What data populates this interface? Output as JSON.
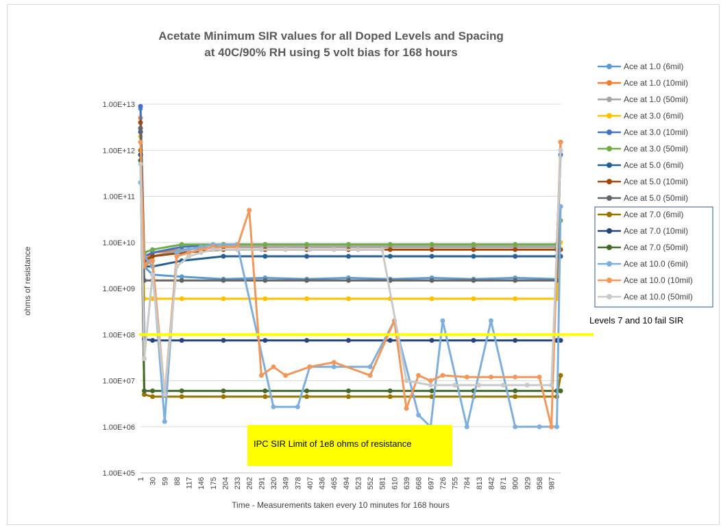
{
  "chart_data": {
    "type": "line",
    "title_lines": [
      "Acetate Minimum SIR values  for all Doped Levels and Spacing",
      "at 40C/90% RH using 5 volt bias for 168 hours"
    ],
    "xlabel": "Time - Measurements taken every 10 minutes for 168 hours",
    "ylabel": "ohms of resistance",
    "y_scale": "log",
    "ylim": [
      100000,
      10000000000000
    ],
    "y_ticks": [
      "1.00E+05",
      "1.00E+06",
      "1.00E+07",
      "1.00E+08",
      "1.00E+09",
      "1.00E+10",
      "1.00E+11",
      "1.00E+12",
      "1.00E+13"
    ],
    "xlim": [
      1,
      1009
    ],
    "x_ticks": [
      1,
      30,
      59,
      88,
      117,
      146,
      175,
      204,
      233,
      262,
      291,
      320,
      349,
      378,
      407,
      436,
      465,
      494,
      523,
      552,
      581,
      610,
      639,
      668,
      697,
      726,
      755,
      784,
      813,
      842,
      871,
      900,
      929,
      958,
      987
    ],
    "grid": true,
    "legend_position": "right",
    "limit_line": {
      "value": 100000000,
      "color": "#ffff00"
    },
    "annotations": {
      "levels_fail": "Levels 7 and 10 fail SIR",
      "ipc_limit": "IPC SIR Limit of 1e8 ohms of resistance"
    },
    "series": [
      {
        "name": "Ace at 1.0 (6mil)",
        "color": "#5b9bd5",
        "x": [
          1,
          10,
          30,
          100,
          200,
          300,
          400,
          500,
          600,
          700,
          800,
          900,
          1000,
          1009
        ],
        "y": [
          8000000000000,
          3000000000,
          2000000000,
          1800000000,
          1600000000,
          1700000000,
          1600000000,
          1700000000,
          1600000000,
          1700000000,
          1600000000,
          1700000000,
          1600000000,
          60000000000
        ]
      },
      {
        "name": "Ace at 1.0 (10mil)",
        "color": "#ed7d31",
        "x": [
          1,
          10,
          30,
          100,
          200,
          300,
          400,
          500,
          600,
          700,
          800,
          900,
          1000,
          1009
        ],
        "y": [
          5000000000000,
          4000000000,
          6000000000,
          7000000000,
          8000000000,
          8000000000,
          8000000000,
          8000000000,
          8000000000,
          8000000000,
          8000000000,
          8000000000,
          8000000000,
          1500000000000
        ]
      },
      {
        "name": "Ace at 1.0  (50mil)",
        "color": "#a5a5a5",
        "x": [
          1,
          10,
          30,
          100,
          200,
          300,
          400,
          500,
          600,
          700,
          800,
          900,
          1000,
          1009
        ],
        "y": [
          3000000000000,
          3000000000,
          5000000000,
          7000000000,
          8000000000,
          8000000000,
          8000000000,
          8000000000,
          8000000000,
          8000000000,
          8000000000,
          8000000000,
          8000000000,
          1000000000000
        ]
      },
      {
        "name": "Ace at 3.0 (6mil)",
        "color": "#ffc000",
        "x": [
          1,
          10,
          30,
          100,
          200,
          300,
          400,
          500,
          600,
          700,
          800,
          900,
          1000,
          1009
        ],
        "y": [
          2000000000000,
          600000000,
          600000000,
          600000000,
          600000000,
          600000000,
          600000000,
          600000000,
          600000000,
          600000000,
          600000000,
          600000000,
          600000000,
          10000000000
        ]
      },
      {
        "name": "Ace at 3.0 (10mil)",
        "color": "#4472c4",
        "x": [
          1,
          10,
          30,
          100,
          200,
          300,
          400,
          500,
          600,
          700,
          800,
          900,
          1000,
          1009
        ],
        "y": [
          9000000000000,
          5000000000,
          6000000000,
          8000000000,
          9000000000,
          9000000000,
          9000000000,
          9000000000,
          9000000000,
          9000000000,
          9000000000,
          9000000000,
          9000000000,
          800000000000
        ]
      },
      {
        "name": "Ace at 3.0 (50mil)",
        "color": "#70ad47",
        "x": [
          1,
          10,
          30,
          100,
          200,
          300,
          400,
          500,
          600,
          700,
          800,
          900,
          1000,
          1009
        ],
        "y": [
          1500000000000,
          6000000000,
          7000000000,
          9000000000,
          9000000000,
          9000000000,
          9000000000,
          9000000000,
          9000000000,
          9000000000,
          9000000000,
          9000000000,
          9000000000,
          30000000000
        ]
      },
      {
        "name": "Ace at 5.0 (6mil)",
        "color": "#255e91",
        "x": [
          1,
          10,
          30,
          100,
          200,
          300,
          400,
          500,
          600,
          700,
          800,
          900,
          1000,
          1009
        ],
        "y": [
          2500000000000,
          3000000000,
          3000000000,
          4000000000,
          5000000000,
          5000000000,
          5000000000,
          5000000000,
          5000000000,
          5000000000,
          5000000000,
          5000000000,
          5000000000,
          5000000000
        ]
      },
      {
        "name": "Ace at 5.0 (10mil)",
        "color": "#9e480e",
        "x": [
          1,
          10,
          30,
          100,
          200,
          300,
          400,
          500,
          600,
          700,
          800,
          900,
          1000,
          1009
        ],
        "y": [
          4000000000000,
          4000000000,
          5000000000,
          6000000000,
          7000000000,
          7000000000,
          7000000000,
          7000000000,
          7000000000,
          7000000000,
          7000000000,
          7000000000,
          7000000000,
          7000000000
        ]
      },
      {
        "name": "Ace at 5.0 (50mil)",
        "color": "#636363",
        "x": [
          1,
          10,
          30,
          100,
          200,
          300,
          400,
          500,
          600,
          700,
          800,
          900,
          1000,
          1009
        ],
        "y": [
          3000000000000,
          1500000000,
          1500000000,
          1500000000,
          1500000000,
          1500000000,
          1500000000,
          1500000000,
          1500000000,
          1500000000,
          1500000000,
          1500000000,
          1500000000,
          1500000000000
        ]
      },
      {
        "name": "Ace at 7.0 (6mil)",
        "color": "#997300",
        "x": [
          1,
          10,
          30,
          100,
          200,
          300,
          400,
          500,
          600,
          700,
          800,
          900,
          1000,
          1009
        ],
        "y": [
          1000000000000,
          5000000,
          4500000,
          4500000,
          4500000,
          4500000,
          4500000,
          4500000,
          4500000,
          4500000,
          4500000,
          4500000,
          4500000,
          13000000
        ]
      },
      {
        "name": "Ace at 7.0 (10mil)",
        "color": "#264478",
        "x": [
          1,
          10,
          30,
          100,
          200,
          300,
          400,
          500,
          600,
          700,
          800,
          900,
          1000,
          1009
        ],
        "y": [
          800000000000,
          80000000,
          75000000,
          75000000,
          75000000,
          75000000,
          75000000,
          75000000,
          75000000,
          75000000,
          75000000,
          75000000,
          75000000,
          75000000
        ]
      },
      {
        "name": "Ace at 7.0 (50mil)",
        "color": "#43682b",
        "x": [
          1,
          10,
          30,
          100,
          200,
          300,
          400,
          500,
          600,
          700,
          800,
          900,
          1000,
          1009
        ],
        "y": [
          600000000000,
          6000000,
          6000000,
          6000000,
          6000000,
          6000000,
          6000000,
          6000000,
          6000000,
          6000000,
          6000000,
          6000000,
          6000000,
          6000000
        ]
      },
      {
        "name": "Ace at 10.0 (6mil)",
        "color": "#7cafdd",
        "x": [
          1,
          10,
          30,
          59,
          88,
          117,
          146,
          175,
          233,
          320,
          378,
          407,
          465,
          552,
          610,
          668,
          697,
          726,
          784,
          842,
          900,
          958,
          987,
          1000,
          1009
        ],
        "y": [
          200000000000,
          5000000000,
          3000000000,
          1300000,
          6000000000,
          7000000000,
          8000000000,
          9000000000,
          9000000000,
          2700000,
          2700000,
          20000000,
          20000000,
          20000000,
          200000000,
          1800000,
          1000000,
          200000000,
          1000000,
          200000000,
          1000000,
          1000000,
          1000000,
          1000000,
          60000000000
        ]
      },
      {
        "name": "Ace at 10.0 (10mil)",
        "color": "#f1975a",
        "x": [
          1,
          10,
          30,
          59,
          88,
          117,
          146,
          175,
          233,
          262,
          291,
          320,
          349,
          407,
          465,
          552,
          610,
          639,
          668,
          697,
          726,
          784,
          842,
          900,
          958,
          987,
          1009
        ],
        "y": [
          1500000000000,
          3000000000,
          4000000000,
          5000000,
          5000000000,
          6000000000,
          7000000000,
          8000000000,
          8000000000,
          50000000000,
          13000000,
          20000000,
          13000000,
          20000000,
          25000000,
          13000000,
          200000000,
          2500000,
          13000000,
          10000000,
          13000000,
          12000000,
          12000000,
          12000000,
          12000000,
          1000000,
          1500000000000
        ]
      },
      {
        "name": "Ace at 10.0 (50mil)",
        "color": "#c9c9c9",
        "x": [
          1,
          10,
          30,
          59,
          88,
          117,
          146,
          175,
          233,
          291,
          349,
          407,
          465,
          523,
          581,
          639,
          697,
          755,
          813,
          871,
          929,
          987,
          1009
        ],
        "y": [
          500000000000,
          30000000,
          2000000000,
          5000000,
          3000000000,
          5000000000,
          6000000000,
          7000000000,
          7000000000,
          7000000000,
          7000000000,
          7000000000,
          7000000000,
          7000000000,
          7000000000,
          10000000,
          8000000,
          8000000,
          8000000,
          8000000,
          8000000,
          8000000,
          1000000000000
        ]
      }
    ]
  }
}
